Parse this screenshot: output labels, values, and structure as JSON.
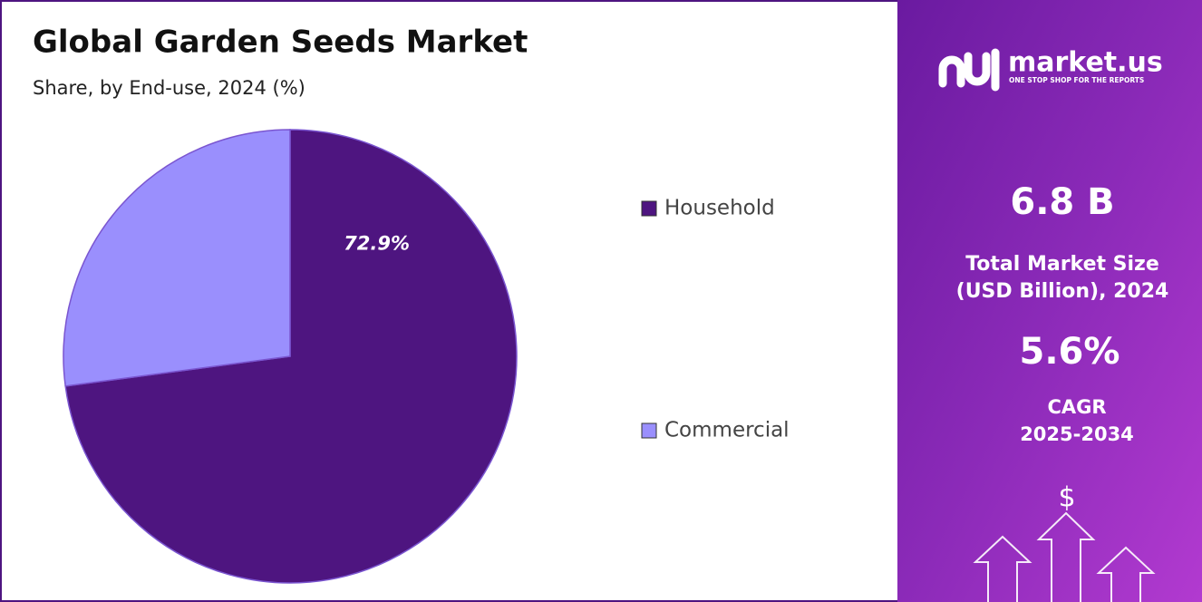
{
  "chart_data": {
    "type": "pie",
    "title": "Global Garden Seeds Market",
    "subtitle": "Share, by End-use, 2024 (%)",
    "categories": [
      "Household",
      "Commercial"
    ],
    "values": [
      72.9,
      27.1
    ],
    "value_labels": [
      "72.9%",
      null
    ],
    "colors": [
      "#4e1580",
      "#9a8ffd"
    ]
  },
  "panel": {
    "brand": "market.us",
    "tagline": "ONE STOP SHOP FOR THE REPORTS",
    "market_size": "6.8 B",
    "market_size_label": [
      "Total Market Size",
      "(USD Billion), 2024"
    ],
    "cagr": "5.6%",
    "cagr_label": [
      "CAGR",
      "2025-2034"
    ],
    "icon": "$"
  }
}
